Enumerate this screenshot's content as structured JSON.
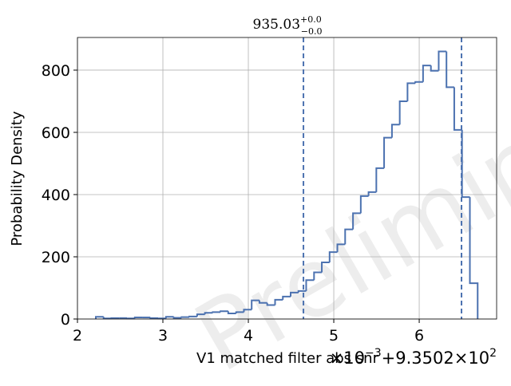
{
  "chart_data": {
    "type": "histogram",
    "title": {
      "value": "935.03",
      "upper": "+0.0",
      "lower": "−0.0"
    },
    "xlabel": "V1 matched filter abs snr",
    "ylabel": "Probability Density",
    "offset_text": {
      "base": "×10",
      "exp": "−3",
      "shift": "+9.3502×10",
      "shift_exp": "2"
    },
    "watermark": "Preliminary",
    "color": "#4c72b0",
    "bins": [
      2.215,
      2.306,
      2.397,
      2.489,
      2.58,
      2.671,
      2.762,
      2.853,
      2.945,
      3.036,
      3.127,
      3.218,
      3.309,
      3.401,
      3.492,
      3.583,
      3.674,
      3.765,
      3.857,
      3.948,
      4.039,
      4.13,
      4.221,
      4.313,
      4.404,
      4.495,
      4.586,
      4.677,
      4.769,
      4.86,
      4.951,
      5.042,
      5.133,
      5.225,
      5.316,
      5.407,
      5.498,
      5.589,
      5.681,
      5.772,
      5.863,
      5.954,
      6.045,
      6.137,
      6.228,
      6.319,
      6.41,
      6.501,
      6.593,
      6.684
    ],
    "counts": [
      7,
      2,
      3,
      3,
      2,
      5,
      5,
      3,
      2,
      7,
      4,
      6,
      8,
      15,
      20,
      22,
      25,
      18,
      22,
      30,
      60,
      52,
      45,
      62,
      72,
      85,
      90,
      125,
      150,
      182,
      215,
      240,
      288,
      340,
      395,
      408,
      485,
      583,
      625,
      700,
      758,
      762,
      815,
      798,
      860,
      745,
      608,
      392,
      115
    ],
    "vlines": [
      4.645,
      6.495
    ],
    "xlim": [
      2,
      6.906
    ],
    "ylim": [
      0,
      905
    ],
    "xticks": [
      2,
      3,
      4,
      5,
      6
    ],
    "yticks": [
      0,
      200,
      400,
      600,
      800
    ],
    "grid": true
  }
}
